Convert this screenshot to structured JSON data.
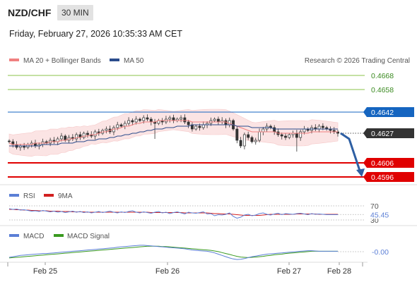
{
  "header": {
    "pair": "NZD/CHF",
    "timeframe": "30 MIN",
    "datetime": "Friday, February 27, 2026 10:35:33 AM CET"
  },
  "legend": {
    "ma20": "MA 20 + Bollinger Bands",
    "ma50": "MA 50",
    "credit": "Research © 2026 Trading Central",
    "rsi": "RSI",
    "rsi_ma": "9MA",
    "macd": "MACD",
    "macd_signal": "MACD Signal"
  },
  "colors": {
    "ma20": "#f08080",
    "ma50": "#2b4c8c",
    "band_fill": "#fbe4e4",
    "candle": "#333333",
    "resistance": "#8bc34a",
    "pivot": "#1565c0",
    "support": "#e00000",
    "current": "#333333",
    "arrow": "#2e5fa3",
    "rsi": "#5b7fd6",
    "rsi_ma": "#d22020",
    "macd": "#5b7fd6",
    "macd_signal": "#3a9a20"
  },
  "chart_data": {
    "type": "candlestick",
    "x_ticks": [
      "Feb 25",
      "Feb 26",
      "Feb 27",
      "Feb 28"
    ],
    "levels": [
      {
        "value": 0.4668,
        "label": "0.4668",
        "kind": "resistance"
      },
      {
        "value": 0.4658,
        "label": "0.4658",
        "kind": "resistance"
      },
      {
        "value": 0.4642,
        "label": "0.4642",
        "kind": "pivot"
      },
      {
        "value": 0.4627,
        "label": "0.4627",
        "kind": "current"
      },
      {
        "value": 0.4606,
        "label": "0.4606",
        "kind": "support"
      },
      {
        "value": 0.4596,
        "label": "0.4596",
        "kind": "support"
      }
    ],
    "close": [
      0.4621,
      0.4619,
      0.4617,
      0.4618,
      0.4617,
      0.4619,
      0.462,
      0.4618,
      0.4619,
      0.4621,
      0.462,
      0.4622,
      0.4621,
      0.4623,
      0.4625,
      0.4622,
      0.4624,
      0.4623,
      0.4626,
      0.4624,
      0.4627,
      0.4626,
      0.4625,
      0.4628,
      0.4627,
      0.4629,
      0.463,
      0.4628,
      0.4631,
      0.4633,
      0.4632,
      0.4634,
      0.4636,
      0.4635,
      0.4637,
      0.4636,
      0.4638,
      0.4637,
      0.4635,
      0.4634,
      0.4636,
      0.4635,
      0.4637,
      0.4638,
      0.4636,
      0.4637,
      0.4638,
      0.4635,
      0.4633,
      0.463,
      0.4632,
      0.4631,
      0.4633,
      0.4634,
      0.4636,
      0.4637,
      0.4635,
      0.4636,
      0.4633,
      0.4636,
      0.463,
      0.4622,
      0.4618,
      0.4626,
      0.4624,
      0.4621,
      0.4622,
      0.4628,
      0.463,
      0.4632,
      0.4631,
      0.4628,
      0.4626,
      0.4625,
      0.4624,
      0.4626,
      0.4627,
      0.4624,
      0.4628,
      0.463,
      0.4629,
      0.4631,
      0.463,
      0.4632,
      0.4631,
      0.463,
      0.4629,
      0.4628,
      0.4627
    ],
    "ma20": [
      0.462,
      0.4619,
      0.4619,
      0.4619,
      0.4619,
      0.4619,
      0.4619,
      0.462,
      0.462,
      0.462,
      0.462,
      0.4621,
      0.4621,
      0.4621,
      0.4622,
      0.4622,
      0.4623,
      0.4623,
      0.4624,
      0.4624,
      0.4625,
      0.4625,
      0.4626,
      0.4626,
      0.4627,
      0.4628,
      0.4628,
      0.4629,
      0.463,
      0.463,
      0.4631,
      0.4632,
      0.4632,
      0.4633,
      0.4634,
      0.4634,
      0.4635,
      0.4635,
      0.4635,
      0.4635,
      0.4636,
      0.4636,
      0.4636,
      0.4636,
      0.4636,
      0.4636,
      0.4636,
      0.4636,
      0.4636,
      0.4635,
      0.4635,
      0.4635,
      0.4635,
      0.4635,
      0.4635,
      0.4635,
      0.4635,
      0.4635,
      0.4635,
      0.4634,
      0.4633,
      0.4632,
      0.4631,
      0.463,
      0.4629,
      0.4628,
      0.4628,
      0.4628,
      0.4628,
      0.4628,
      0.4628,
      0.4628,
      0.4627,
      0.4627,
      0.4627,
      0.4627,
      0.4627,
      0.4627,
      0.4627,
      0.4627,
      0.4627,
      0.4628,
      0.4628,
      0.4628,
      0.4628,
      0.4628,
      0.4628,
      0.4628,
      0.4628
    ],
    "ma50": [
      0.4618,
      0.4618,
      0.4618,
      0.4618,
      0.4618,
      0.4618,
      0.4618,
      0.4618,
      0.4618,
      0.4619,
      0.4619,
      0.4619,
      0.4619,
      0.4619,
      0.462,
      0.462,
      0.462,
      0.462,
      0.4621,
      0.4621,
      0.4621,
      0.4622,
      0.4622,
      0.4622,
      0.4623,
      0.4623,
      0.4623,
      0.4624,
      0.4624,
      0.4625,
      0.4625,
      0.4626,
      0.4626,
      0.4627,
      0.4627,
      0.4628,
      0.4628,
      0.4629,
      0.4629,
      0.463,
      0.463,
      0.463,
      0.4631,
      0.4631,
      0.4631,
      0.4632,
      0.4632,
      0.4632,
      0.4632,
      0.4633,
      0.4633,
      0.4633,
      0.4633,
      0.4633,
      0.4633,
      0.4633,
      0.4633,
      0.4633,
      0.4633,
      0.4633,
      0.4633,
      0.4632,
      0.4632,
      0.4632,
      0.4632,
      0.4631,
      0.4631,
      0.4631,
      0.4631,
      0.4631,
      0.4631,
      0.463,
      0.463,
      0.463,
      0.463,
      0.463,
      0.463,
      0.463,
      0.463,
      0.463,
      0.463,
      0.463,
      0.463,
      0.463,
      0.463,
      0.463,
      0.463,
      0.463,
      0.463
    ],
    "projection": [
      0.4627,
      0.4596
    ],
    "rsi": {
      "levels": [
        "70",
        "30"
      ],
      "current_label": "45.45",
      "values": [
        62,
        60,
        61,
        58,
        59,
        57,
        55,
        56,
        54,
        57,
        55,
        53,
        55,
        52,
        54,
        51,
        53,
        55,
        52,
        54,
        51,
        53,
        50,
        52,
        54,
        51,
        53,
        55,
        52,
        50,
        53,
        51,
        54,
        56,
        52,
        50,
        53,
        51,
        49,
        52,
        54,
        50,
        52,
        48,
        51,
        53,
        50,
        47,
        52,
        50,
        49,
        51,
        53,
        47,
        48,
        42,
        45,
        44,
        46,
        50,
        40,
        35,
        38,
        44,
        46,
        42,
        44,
        48,
        50,
        46,
        44,
        47,
        49,
        45,
        48,
        47,
        46,
        48,
        49,
        47,
        45,
        48,
        46,
        47,
        46,
        45,
        45,
        45,
        45
      ],
      "ma": [
        60,
        60,
        59,
        59,
        58,
        58,
        57,
        57,
        56,
        56,
        56,
        55,
        55,
        55,
        54,
        54,
        54,
        53,
        53,
        53,
        53,
        52,
        52,
        52,
        52,
        52,
        52,
        52,
        52,
        52,
        52,
        52,
        52,
        52,
        52,
        52,
        52,
        52,
        51,
        51,
        51,
        51,
        51,
        51,
        51,
        51,
        51,
        50,
        50,
        50,
        50,
        50,
        50,
        50,
        49,
        48,
        48,
        47,
        47,
        47,
        46,
        45,
        44,
        43,
        43,
        43,
        43,
        43,
        44,
        45,
        46,
        46,
        46,
        46,
        46,
        46,
        46,
        47,
        47,
        47,
        47,
        47,
        47,
        46,
        46,
        46,
        46,
        46,
        46
      ]
    },
    "macd": {
      "zero_label": "-0.00",
      "macd": [
        -0.0002,
        -0.00018,
        -0.00016,
        -0.00014,
        -0.00013,
        -0.00012,
        -0.00011,
        -0.0001,
        -9e-05,
        -8e-05,
        -8e-05,
        -7e-05,
        -6e-05,
        -5e-05,
        -4e-05,
        -3e-05,
        -2e-05,
        -1e-05,
        0.0,
        1e-05,
        2e-05,
        3e-05,
        4e-05,
        5e-05,
        6e-05,
        7e-05,
        8e-05,
        9e-05,
        0.0001,
        0.00012,
        0.00013,
        0.00014,
        0.00015,
        0.00016,
        0.00017,
        0.00018,
        0.00018,
        0.00017,
        0.00016,
        0.00015,
        0.00014,
        0.00013,
        0.00012,
        0.00011,
        0.0001,
        9e-05,
        8e-05,
        7e-05,
        5e-05,
        3e-05,
        2e-05,
        1e-05,
        0.0,
        -1e-05,
        -3e-05,
        -6e-05,
        -0.0001,
        -0.00014,
        -0.00018,
        -0.00022,
        -0.00025,
        -0.00027,
        -0.00026,
        -0.00024,
        -0.00021,
        -0.00018,
        -0.00016,
        -0.00014,
        -0.00012,
        -0.0001,
        -9e-05,
        -8e-05,
        -7e-05,
        -6e-05,
        -5e-05,
        -4e-05,
        -3e-05,
        -2e-05,
        -1e-05,
        0.0,
        1e-05,
        1e-05,
        0.0,
        -1e-05,
        -1e-05,
        -1e-05,
        -1e-05,
        -1e-05,
        -1e-05
      ],
      "signal": [
        -0.00022,
        -0.00021,
        -0.0002,
        -0.00019,
        -0.00018,
        -0.00017,
        -0.00016,
        -0.00015,
        -0.00014,
        -0.00013,
        -0.00012,
        -0.00011,
        -0.0001,
        -9e-05,
        -8e-05,
        -7e-05,
        -6e-05,
        -5e-05,
        -4e-05,
        -3e-05,
        -2e-05,
        -1e-05,
        0.0,
        1e-05,
        2e-05,
        3e-05,
        4e-05,
        5e-05,
        6e-05,
        7e-05,
        8e-05,
        9e-05,
        0.0001,
        0.00011,
        0.00012,
        0.00013,
        0.00014,
        0.00015,
        0.00015,
        0.00015,
        0.00015,
        0.00014,
        0.00014,
        0.00013,
        0.00012,
        0.00011,
        0.0001,
        9e-05,
        8e-05,
        7e-05,
        6e-05,
        5e-05,
        4e-05,
        3e-05,
        2e-05,
        0.0,
        -2e-05,
        -5e-05,
        -8e-05,
        -0.00011,
        -0.00014,
        -0.00017,
        -0.00019,
        -0.0002,
        -0.00021,
        -0.0002,
        -0.00019,
        -0.00018,
        -0.00017,
        -0.00015,
        -0.00014,
        -0.00012,
        -0.00011,
        -0.0001,
        -8e-05,
        -7e-05,
        -6e-05,
        -5e-05,
        -4e-05,
        -3e-05,
        -2e-05,
        -1e-05,
        -1e-05,
        -1e-05,
        -1e-05,
        -1e-05,
        -1e-05,
        -1e-05,
        -1e-05
      ]
    }
  }
}
